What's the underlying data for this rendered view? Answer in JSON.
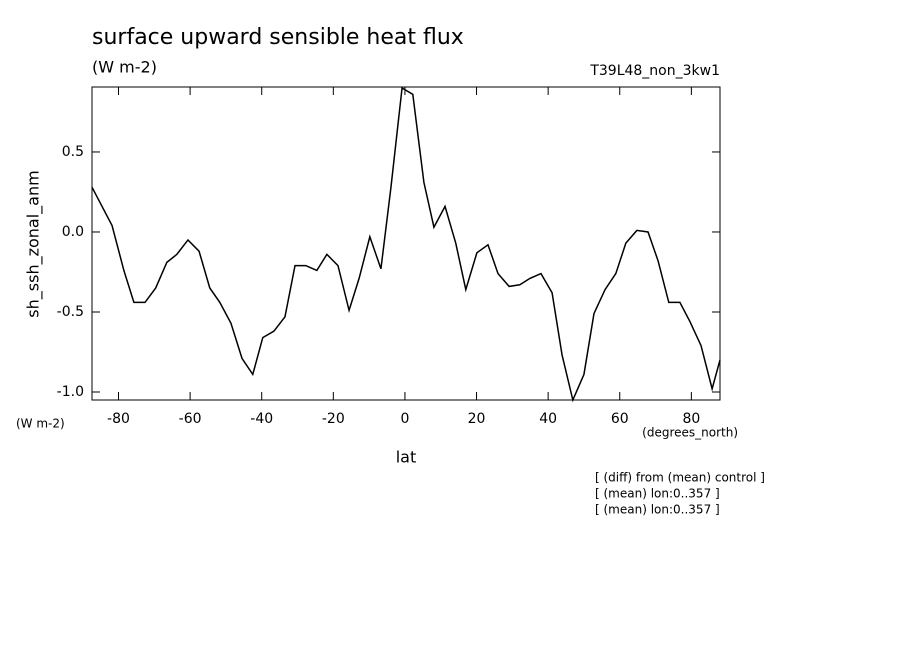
{
  "chart_data": {
    "type": "line",
    "title": "surface upward sensible heat flux",
    "subtitle": "(W m-2)",
    "dataset": "T39L48_non_3kw1",
    "y_label": "sh_ssh_zonal_anm",
    "y_units": "(W m-2)",
    "x_label": "lat",
    "x_units": "(degrees_north)",
    "notes": [
      "[ (diff) from (mean) control ]",
      "[ (mean) lon:0..357 ]",
      "[ (mean) lon:0..357 ]"
    ],
    "x": [
      -87.4,
      -81.8,
      -78.5,
      -75.7,
      -72.6,
      -69.6,
      -66.5,
      -63.7,
      -60.6,
      -57.5,
      -54.5,
      -51.7,
      -48.6,
      -45.5,
      -42.5,
      -39.7,
      -36.6,
      -33.5,
      -30.7,
      -27.7,
      -24.6,
      -21.8,
      -18.7,
      -15.6,
      -12.8,
      -9.8,
      -6.7,
      -3.9,
      -0.8,
      2.2,
      5.3,
      8.1,
      11.2,
      14.2,
      17.0,
      20.1,
      23.2,
      26.0,
      29.1,
      32.1,
      34.9,
      38.0,
      41.1,
      43.9,
      46.9,
      50.0,
      52.8,
      55.9,
      58.9,
      61.7,
      64.8,
      67.9,
      70.7,
      73.7,
      76.8,
      79.6,
      82.7,
      85.8,
      88.0
    ],
    "series": [
      {
        "name": "sh_ssh_zonal_anm",
        "color": "#000000",
        "values": [
          0.28,
          0.04,
          -0.24,
          -0.44,
          -0.44,
          -0.35,
          -0.19,
          -0.14,
          -0.05,
          -0.12,
          -0.35,
          -0.44,
          -0.57,
          -0.79,
          -0.89,
          -0.66,
          -0.62,
          -0.53,
          -0.21,
          -0.21,
          -0.24,
          -0.14,
          -0.21,
          -0.49,
          -0.29,
          -0.03,
          -0.23,
          0.28,
          0.9,
          0.86,
          0.31,
          0.03,
          0.16,
          -0.07,
          -0.36,
          -0.13,
          -0.08,
          -0.26,
          -0.34,
          -0.33,
          -0.29,
          -0.26,
          -0.38,
          -0.77,
          -1.05,
          -0.89,
          -0.51,
          -0.36,
          -0.26,
          -0.07,
          0.01,
          0.0,
          -0.18,
          -0.44,
          -0.44,
          -0.56,
          -0.71,
          -0.98,
          -0.8
        ]
      }
    ],
    "xlim": [
      -87.4,
      88.0
    ],
    "ylim": [
      -1.05,
      0.906
    ],
    "xticks": [
      -80,
      -60,
      -40,
      -20,
      0,
      20,
      40,
      60,
      80
    ],
    "yticks": [
      0.5,
      {
        "value": 0,
        "label": "0.0"
      },
      -0.5,
      {
        "value": -1,
        "label": "-1.0"
      }
    ]
  }
}
